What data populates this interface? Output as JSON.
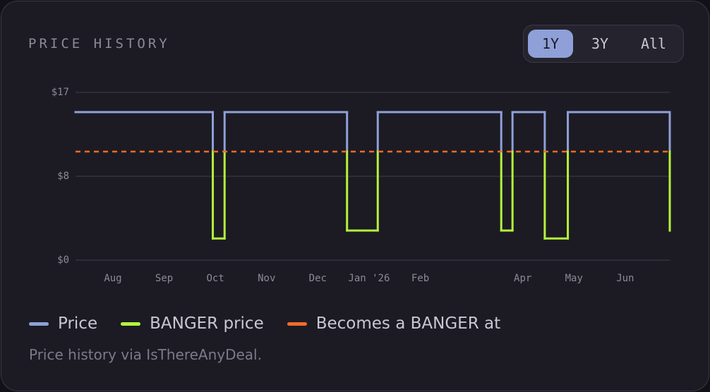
{
  "header": {
    "title": "PRICE HISTORY",
    "ranges": [
      "1Y",
      "3Y",
      "All"
    ],
    "active_range": 0
  },
  "chart_data": {
    "type": "step",
    "x": [
      7.27,
      9.95,
      10.18,
      12.57,
      13.17,
      15.58,
      15.8,
      16.43,
      16.88,
      18.87
    ],
    "series": [
      {
        "name": "Price",
        "color": "#8fa0d8",
        "values": [
          15,
          2.2,
          15,
          3,
          15,
          3,
          15,
          2.2,
          15,
          3
        ]
      }
    ],
    "below_threshold": {
      "name": "BANGER price",
      "color": "#b5f23d"
    },
    "threshold": {
      "name": "Becomes a BANGER at",
      "color": "#f26b2a",
      "value": 11
    },
    "xlim": [
      7.27,
      18.87
    ],
    "xticks": [
      {
        "value": 8,
        "label": "Aug"
      },
      {
        "value": 9,
        "label": "Sep"
      },
      {
        "value": 10,
        "label": "Oct"
      },
      {
        "value": 11,
        "label": "Nov"
      },
      {
        "value": 12,
        "label": "Dec"
      },
      {
        "value": 13,
        "label": "Jan '26"
      },
      {
        "value": 14,
        "label": "Feb"
      },
      {
        "value": 16,
        "label": "Apr"
      },
      {
        "value": 17,
        "label": "May"
      },
      {
        "value": 18,
        "label": "Jun"
      }
    ],
    "ylim": [
      0,
      17
    ],
    "yticks": [
      {
        "value": 0,
        "label": "$0"
      },
      {
        "value": 8.5,
        "label": "$8"
      },
      {
        "value": 17,
        "label": "$17"
      }
    ],
    "grid": true
  },
  "footer": "Price history via IsThereAnyDeal."
}
